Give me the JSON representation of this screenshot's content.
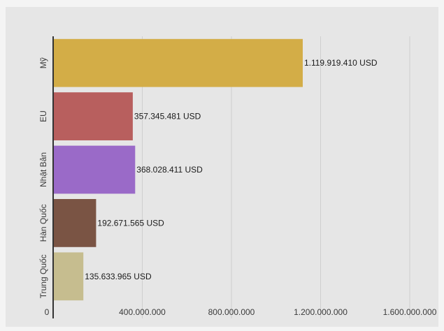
{
  "chart_data": {
    "type": "bar",
    "orientation": "horizontal",
    "categories": [
      "Mỹ",
      "EU",
      "Nhật Bản",
      "Hàn Quốc",
      "Trung Quốc"
    ],
    "values": [
      1119919410,
      357345481,
      368028411,
      192671565,
      135633965
    ],
    "value_labels": [
      "1.119.919.410 USD",
      "357.345.481 USD",
      "368.028.411 USD",
      "192.671.565 USD",
      "135.633.965 USD"
    ],
    "colors": [
      "#d3ad47",
      "#b85f5e",
      "#9a6ac8",
      "#7a5444",
      "#c6bd8f"
    ],
    "x_ticks": [
      0,
      400000000,
      800000000,
      1200000000,
      1600000000
    ],
    "x_tick_labels": [
      "0",
      "400.000.000",
      "800.000.000",
      "1.200.000.000",
      "1.600.000.000"
    ],
    "xlim": [
      0,
      1600000000
    ],
    "grid": true,
    "title": "",
    "xlabel": "",
    "ylabel": ""
  }
}
